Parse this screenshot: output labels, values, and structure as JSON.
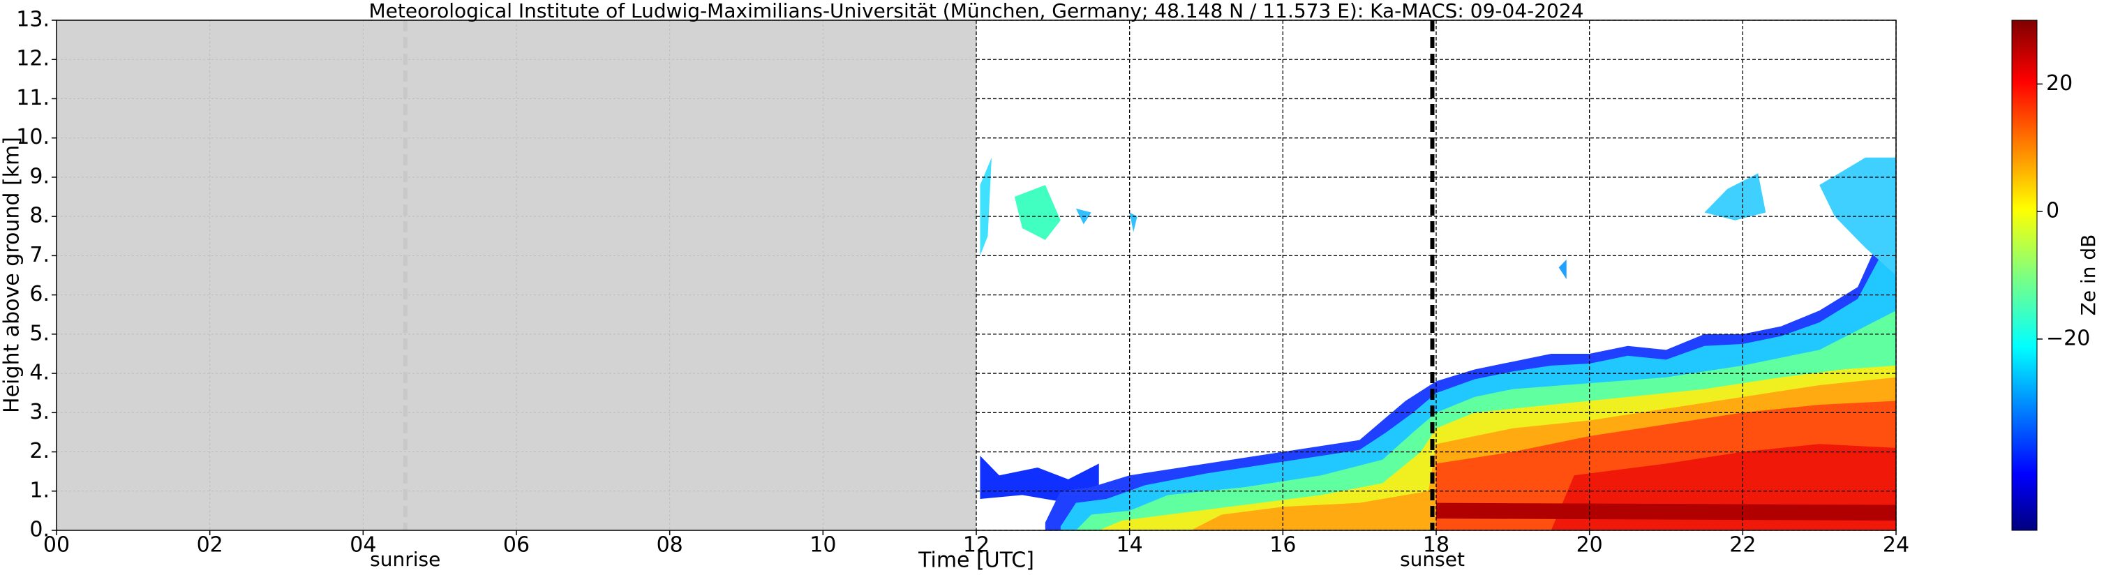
{
  "chart_data": {
    "type": "heatmap",
    "title": "Meteorological Institute of Ludwig-Maximilians-Universität (München, Germany; 48.148 N / 11.573 E):    Ka-MACS: 09-04-2024",
    "x_label": "Time [UTC]",
    "y_label": "Height above ground [km]",
    "xlim": [
      0,
      24
    ],
    "ylim": [
      0,
      13
    ],
    "xticks": [
      {
        "value": 0,
        "label": "00"
      },
      {
        "value": 2,
        "label": "02"
      },
      {
        "value": 4,
        "label": "04"
      },
      {
        "value": 6,
        "label": "06"
      },
      {
        "value": 8,
        "label": "08"
      },
      10,
      12,
      14,
      16,
      18,
      20,
      22,
      24
    ],
    "yticks": [
      {
        "value": 0,
        "label": "0."
      },
      {
        "value": 1,
        "label": "1."
      },
      {
        "value": 2,
        "label": "2."
      },
      {
        "value": 3,
        "label": "3."
      },
      {
        "value": 4,
        "label": "4."
      },
      {
        "value": 5,
        "label": "5."
      },
      {
        "value": 6,
        "label": "6."
      },
      {
        "value": 7,
        "label": "7."
      },
      {
        "value": 8,
        "label": "8."
      },
      {
        "value": 9,
        "label": "9."
      },
      {
        "value": 10,
        "label": "10."
      },
      {
        "value": 11,
        "label": "11."
      },
      {
        "value": 12,
        "label": "12."
      },
      {
        "value": 13,
        "label": "13."
      }
    ],
    "grid": true,
    "grey_region": [
      0,
      12
    ],
    "annotations": [
      {
        "label": "sunrise",
        "x": 4.55,
        "color": "#c8c8c8"
      },
      {
        "label": "sunset",
        "x": 17.95,
        "color": "#000000"
      }
    ],
    "colorbar": {
      "label": "Ze in dB",
      "clim": [
        -50,
        30
      ],
      "ticks": [
        {
          "value": -20,
          "label": "−20"
        },
        0,
        20
      ]
    }
  }
}
